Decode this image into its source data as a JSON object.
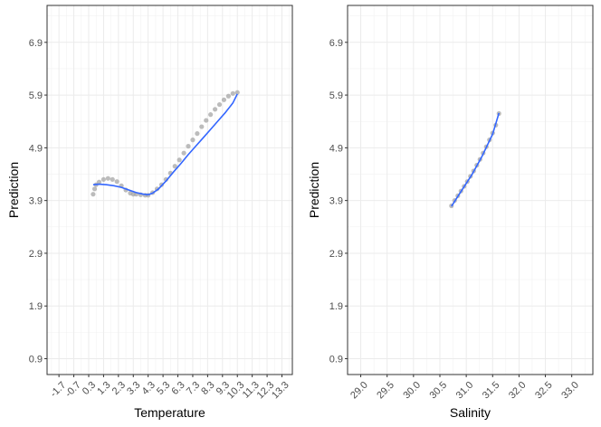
{
  "chart_data": [
    {
      "type": "scatter",
      "xlabel": "Temperature",
      "ylabel": "Prediction",
      "xlim": [
        -2.5,
        14.0
      ],
      "ylim": [
        0.6,
        7.6
      ],
      "x_ticks": [
        -1.7,
        -0.7,
        0.3,
        1.3,
        2.3,
        3.3,
        4.3,
        5.3,
        6.3,
        7.3,
        8.3,
        9.3,
        10.3,
        11.3,
        12.3,
        13.3
      ],
      "x_tick_labels": [
        "-1.7",
        "-0.7",
        "0.3",
        "1.3",
        "2.3",
        "3.3",
        "4.3",
        "5.3",
        "6.3",
        "7.3",
        "8.3",
        "9.3",
        "10.3",
        "11.3",
        "12.3",
        "13.3"
      ],
      "y_ticks": [
        0.9,
        1.9,
        2.9,
        3.9,
        4.9,
        5.9,
        6.9
      ],
      "y_tick_labels": [
        "0.9",
        "1.9",
        "2.9",
        "3.9",
        "4.9",
        "5.9",
        "6.9"
      ],
      "points": {
        "x": [
          0.6,
          0.7,
          0.8,
          1.0,
          1.3,
          1.6,
          1.9,
          2.2,
          2.5,
          2.8,
          3.1,
          3.3,
          3.5,
          3.8,
          4.1,
          4.3,
          4.6,
          4.9,
          5.2,
          5.5,
          5.8,
          6.1,
          6.4,
          6.7,
          7.0,
          7.3,
          7.6,
          7.9,
          8.2,
          8.5,
          8.8,
          9.1,
          9.4,
          9.7,
          10.0,
          10.3
        ],
        "y": [
          4.02,
          4.12,
          4.2,
          4.25,
          4.3,
          4.32,
          4.3,
          4.26,
          4.18,
          4.1,
          4.04,
          4.02,
          4.02,
          4.01,
          4.0,
          4.0,
          4.05,
          4.12,
          4.2,
          4.3,
          4.42,
          4.55,
          4.67,
          4.8,
          4.93,
          5.05,
          5.17,
          5.3,
          5.42,
          5.53,
          5.63,
          5.72,
          5.81,
          5.88,
          5.93,
          5.95
        ]
      },
      "smooth": {
        "x": [
          0.6,
          1.0,
          1.5,
          2.0,
          2.5,
          3.0,
          3.5,
          4.0,
          4.3,
          4.6,
          5.0,
          5.5,
          6.0,
          6.5,
          7.0,
          7.5,
          8.0,
          8.5,
          9.0,
          9.5,
          10.0,
          10.3
        ],
        "y": [
          4.2,
          4.21,
          4.2,
          4.18,
          4.15,
          4.1,
          4.05,
          4.02,
          4.01,
          4.04,
          4.12,
          4.27,
          4.44,
          4.6,
          4.77,
          4.93,
          5.09,
          5.25,
          5.41,
          5.57,
          5.75,
          5.92
        ]
      }
    },
    {
      "type": "scatter",
      "xlabel": "Salinity",
      "ylabel": "Prediction",
      "xlim": [
        28.75,
        33.4
      ],
      "ylim": [
        0.6,
        7.6
      ],
      "x_ticks": [
        29.0,
        29.5,
        30.0,
        30.5,
        31.0,
        31.5,
        32.0,
        32.5,
        33.0
      ],
      "x_tick_labels": [
        "29.0",
        "29.5",
        "30.0",
        "30.5",
        "31.0",
        "31.5",
        "32.0",
        "32.5",
        "33.0"
      ],
      "y_ticks": [
        0.9,
        1.9,
        2.9,
        3.9,
        4.9,
        5.9,
        6.9
      ],
      "y_tick_labels": [
        "0.9",
        "1.9",
        "2.9",
        "3.9",
        "4.9",
        "5.9",
        "6.9"
      ],
      "points": {
        "x": [
          30.72,
          30.78,
          30.84,
          30.9,
          30.96,
          31.02,
          31.08,
          31.14,
          31.2,
          31.26,
          31.32,
          31.38,
          31.44,
          31.5,
          31.56,
          31.62
        ],
        "y": [
          3.8,
          3.9,
          3.99,
          4.08,
          4.17,
          4.26,
          4.36,
          4.46,
          4.57,
          4.68,
          4.8,
          4.92,
          5.05,
          5.18,
          5.33,
          5.55
        ]
      },
      "smooth": {
        "x": [
          30.72,
          30.9,
          31.1,
          31.3,
          31.5,
          31.62
        ],
        "y": [
          3.79,
          4.07,
          4.38,
          4.74,
          5.16,
          5.56
        ]
      }
    }
  ]
}
